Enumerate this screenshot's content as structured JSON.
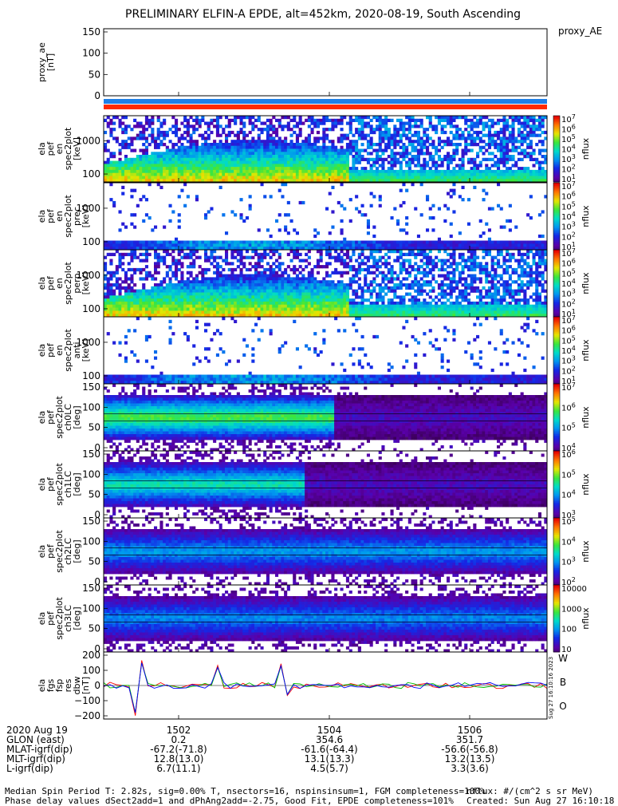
{
  "title": "PRELIMINARY ELFIN-A EPDE, alt=452km, 2020-08-19, South Ascending",
  "chart_data": {
    "type": "heatmap",
    "x_ticks": [
      "1502",
      "1504",
      "1506"
    ],
    "panels": [
      {
        "kind": "line",
        "ylabel_lines": [
          "proxy_ae",
          "[nT]"
        ],
        "yticks": [
          "150",
          "100",
          "50",
          "0"
        ],
        "ylim": [
          0,
          150
        ],
        "right_label": "proxy_AE",
        "values": []
      },
      {
        "kind": "spec",
        "ylabel_lines": [
          "ela",
          "pef",
          "en",
          "spec2plot",
          "[keV]"
        ],
        "yticks": [
          "1000",
          "100"
        ],
        "yscale": "log",
        "cbar_label": "nflux",
        "cbar_ticks": [
          "10^7",
          "10^6",
          "10^5",
          "10^4",
          "10^3",
          "10^2",
          "10^1"
        ]
      },
      {
        "kind": "spec",
        "ylabel_lines": [
          "ela",
          "pef",
          "en",
          "spec2plot",
          "prec",
          "[keV]"
        ],
        "yticks": [
          "1000",
          "100"
        ],
        "yscale": "log",
        "cbar_label": "nflux",
        "cbar_ticks": [
          "10^7",
          "10^6",
          "10^5",
          "10^4",
          "10^3",
          "10^2",
          "10^1"
        ]
      },
      {
        "kind": "spec",
        "ylabel_lines": [
          "ela",
          "pef",
          "en",
          "spec2plot",
          "perp",
          "[keV]"
        ],
        "yticks": [
          "1000",
          "100"
        ],
        "yscale": "log",
        "cbar_label": "nflux",
        "cbar_ticks": [
          "10^7",
          "10^6",
          "10^5",
          "10^4",
          "10^3",
          "10^2",
          "10^1"
        ]
      },
      {
        "kind": "spec",
        "ylabel_lines": [
          "ela",
          "pef",
          "en",
          "spec2plot",
          "anti",
          "[keV]"
        ],
        "yticks": [
          "1000",
          "100"
        ],
        "yscale": "log",
        "cbar_label": "nflux",
        "cbar_ticks": [
          "10^7",
          "10^6",
          "10^5",
          "10^4",
          "10^3",
          "10^2",
          "10^1"
        ]
      },
      {
        "kind": "pa",
        "ylabel_lines": [
          "ela",
          "pef",
          "spec2plot",
          "ch0LC",
          "[deg]"
        ],
        "yticks": [
          "150",
          "100",
          "50",
          "0"
        ],
        "cbar_label": "nflux",
        "cbar_ticks": [
          "10^7",
          "10^6",
          "10^5",
          "10^4"
        ]
      },
      {
        "kind": "pa",
        "ylabel_lines": [
          "ela",
          "pef",
          "spec2plot",
          "ch1LC",
          "[deg]"
        ],
        "yticks": [
          "150",
          "100",
          "50",
          "0"
        ],
        "cbar_label": "nflux",
        "cbar_ticks": [
          "10^6",
          "10^5",
          "10^4",
          "10^3"
        ]
      },
      {
        "kind": "pa",
        "ylabel_lines": [
          "ela",
          "pef",
          "spec2plot",
          "ch2LC",
          "[deg]"
        ],
        "yticks": [
          "150",
          "100",
          "50",
          "0"
        ],
        "cbar_label": "nflux",
        "cbar_ticks": [
          "10^5",
          "10^4",
          "10^3",
          "10^2"
        ]
      },
      {
        "kind": "pa",
        "ylabel_lines": [
          "ela",
          "pef",
          "spec2plot",
          "ch3LC",
          "[deg]"
        ],
        "yticks": [
          "150",
          "100",
          "50",
          "0"
        ],
        "cbar_label": "nflux",
        "cbar_ticks": [
          "10000",
          "1000",
          "100",
          "10"
        ]
      },
      {
        "kind": "residual",
        "ylabel_lines": [
          "ela",
          "fgs",
          "fsp",
          "res",
          "dbw",
          "[nT]"
        ],
        "yticks": [
          "200",
          "100",
          "0",
          "−100",
          "−200"
        ],
        "ylim": [
          -200,
          200
        ],
        "components": [
          {
            "name": "W",
            "color": "#ff0000"
          },
          {
            "name": "B",
            "color": "#00c000"
          },
          {
            "name": "O",
            "color": "#0000ff"
          }
        ],
        "side_note": "Sug 27 16:10:16 2023"
      }
    ],
    "bars": [
      {
        "color": "#1f7fe6"
      },
      {
        "color": "#ff2a00"
      }
    ]
  },
  "axis_table": {
    "rows": [
      {
        "label": "2020 Aug 19",
        "values": [
          "1502",
          "1504",
          "1506"
        ]
      },
      {
        "label": "GLON (east)",
        "values": [
          "0.2",
          "354.6",
          "351.7"
        ]
      },
      {
        "label": "MLAT-igrf(dip)",
        "values": [
          "-67.2(-71.8)",
          "-61.6(-64.4)",
          "-56.6(-56.8)"
        ]
      },
      {
        "label": "MLT-igrf(dip)",
        "values": [
          "12.8(13.0)",
          "13.1(13.3)",
          "13.2(13.5)"
        ]
      },
      {
        "label": "L-igrf(dip)",
        "values": [
          "6.7(11.1)",
          "4.5(5.7)",
          "3.3(3.6)"
        ]
      }
    ]
  },
  "footer": {
    "line1_left": "Median Spin Period T: 2.82s, sig=0.00% T, nsectors=16, nspinsinsum=1, FGM completeness=100%",
    "line2_left": "Phase delay values dSect2add=1 and dPhAng2add=-2.75, Good Fit, EPDE completeness=101%",
    "line1_right": "nflux: #/(cm^2 s sr MeV)",
    "line2_right": "Created: Sun Aug 27 16:10:18 2023"
  }
}
